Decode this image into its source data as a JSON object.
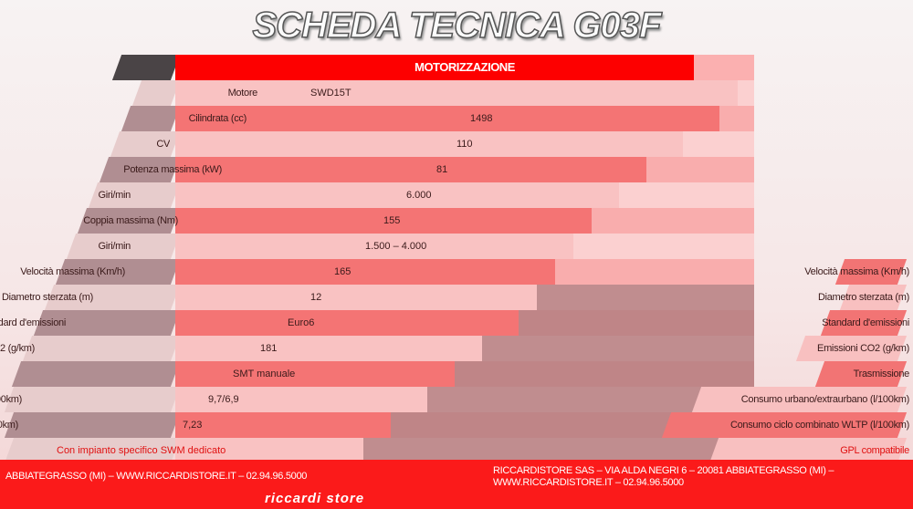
{
  "title": "SCHEDA TECNICA G03F",
  "section_header": "MOTORIZZAZIONE",
  "rows": [
    {
      "label": "Motore",
      "value": "SWD15T"
    },
    {
      "label": "Cilindrata (cc)",
      "value": "1498"
    },
    {
      "label": "CV",
      "value": "110"
    },
    {
      "label": "Potenza massima (kW)",
      "value": "81"
    },
    {
      "label": "Giri/min",
      "value": "6.000"
    },
    {
      "label": "Coppia massima (Nm)",
      "value": "155"
    },
    {
      "label": "Giri/min",
      "value": "1.500 – 4.000"
    },
    {
      "label": "Velocità massima (Km/h)",
      "value": "165"
    },
    {
      "label": "Diametro sterzata (m)",
      "value": "12"
    },
    {
      "label": "Standard d'emissioni",
      "value": "Euro6"
    },
    {
      "label": "Emissioni CO2 (g/km)",
      "value": "181"
    },
    {
      "label": "Trasmissione",
      "value": "SMT manuale"
    },
    {
      "label": "Consumo urbano/extraurbano (l/100km)",
      "value": "9,7/6,9"
    },
    {
      "label": "Consumo ciclo combinato WLTP (l/100km)",
      "value": "7,23"
    },
    {
      "label": "GPL compatibile",
      "value": "Con impianto specifico SWM dedicato"
    }
  ],
  "footer": {
    "left": "ABBIATEGRASSO (MI) – WWW.RICCARDISTORE.IT – 02.94.96.5000",
    "right": "RICCARDISTORE SAS – VIA ALDA NEGRI 6 – 20081 ABBIATEGRASSO (MI) – WWW.RICCARDISTORE.IT – 02.94.96.5000",
    "logo": "riccardi store"
  },
  "colors": {
    "accent": "#fd0000",
    "row_light": "#f9c2c2",
    "row_dark": "#f47474",
    "label_dark": "#a8888c"
  }
}
